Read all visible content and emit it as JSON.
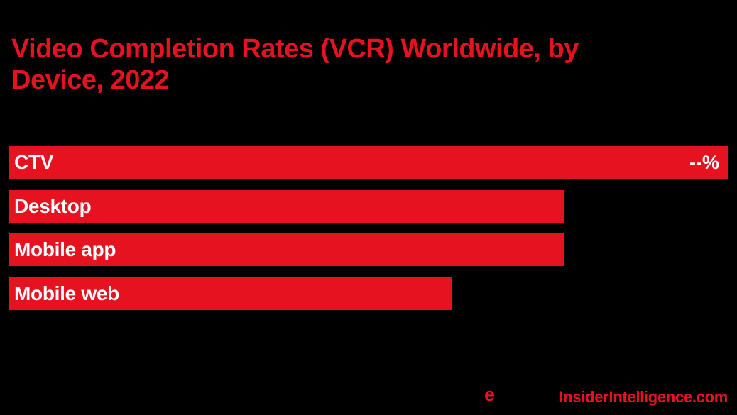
{
  "header": {
    "title_line1": "Video Completion Rates (VCR) Worldwide, by",
    "title_line2": "Device, 2022"
  },
  "chart_data": {
    "type": "bar",
    "orientation": "horizontal",
    "title": "Video Completion Rates (VCR) Worldwide, by Device, 2022",
    "categories": [
      "CTV",
      "Desktop",
      "Mobile app",
      "Mobile web"
    ],
    "value_labels": [
      "--%",
      "",
      "",
      ""
    ],
    "values_shown": false,
    "bar_relative_widths_pct": [
      100,
      77.1,
      77.1,
      61.5
    ],
    "legend": "none",
    "axes": "none",
    "grid": false,
    "colors": {
      "background": "#000000",
      "bar": "#e6121f",
      "bar_label": "#ffffff",
      "title": "#e6121f"
    }
  },
  "footer": {
    "logo_e": "e",
    "site_url_text": "InsiderIntelligence.com"
  }
}
